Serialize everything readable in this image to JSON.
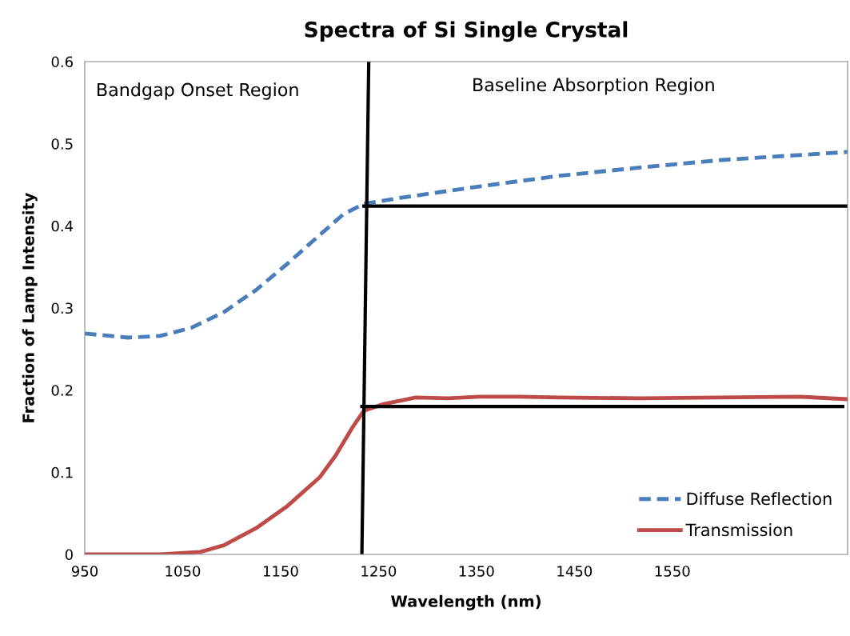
{
  "chart_data": {
    "type": "line",
    "title": "Spectra of Si Single Crystal",
    "xlabel": "Wavelength (nm)",
    "ylabel": "Fraction of Lamp Intensity",
    "xlim": [
      950,
      1729
    ],
    "xticks": [
      950,
      1050,
      1150,
      1250,
      1350,
      1450,
      1550
    ],
    "ylim": [
      0,
      0.6
    ],
    "yticks": [
      0,
      0.1,
      0.2,
      0.3,
      0.4,
      0.5,
      0.6
    ],
    "grid": false,
    "legend": "bottom right",
    "annotations": [
      "Bandgap Onset Region",
      "Baseline Absorption Region"
    ],
    "series": [
      {
        "name": "Diffuse Reflection",
        "color": "#4a7ebb",
        "line_style": "dashed",
        "x": [
          950,
          994,
          1027,
          1059,
          1092,
          1125,
          1157,
          1190,
          1214,
          1235,
          1272,
          1312,
          1353,
          1435,
          1517,
          1598,
          1729
        ],
        "values": [
          0.269,
          0.264,
          0.266,
          0.276,
          0.295,
          0.322,
          0.354,
          0.389,
          0.414,
          0.427,
          0.434,
          0.441,
          0.448,
          0.461,
          0.471,
          0.48,
          0.49
        ]
      },
      {
        "name": "Transmission",
        "color": "#be4b48",
        "line_style": "solid",
        "x": [
          950,
          1027,
          1068,
          1092,
          1125,
          1157,
          1190,
          1206,
          1223,
          1235,
          1255,
          1288,
          1321,
          1353,
          1394,
          1435,
          1517,
          1598,
          1680,
          1729
        ],
        "values": [
          0,
          0,
          0.003,
          0.011,
          0.032,
          0.059,
          0.094,
          0.12,
          0.154,
          0.175,
          0.183,
          0.191,
          0.19,
          0.192,
          0.192,
          0.191,
          0.19,
          0.191,
          0.192,
          0.189
        ]
      },
      {
        "color": "#000000",
        "line_style": "solid",
        "x": [
          1233,
          1240
        ],
        "values": [
          0,
          0.6
        ]
      },
      {
        "color": "#000000",
        "line_style": "solid",
        "x": [
          1235,
          1729
        ],
        "values": [
          0.424,
          0.424
        ]
      },
      {
        "color": "#000000",
        "line_style": "solid",
        "x": [
          1233,
          1724
        ],
        "values": [
          0.18,
          0.18
        ]
      }
    ]
  }
}
